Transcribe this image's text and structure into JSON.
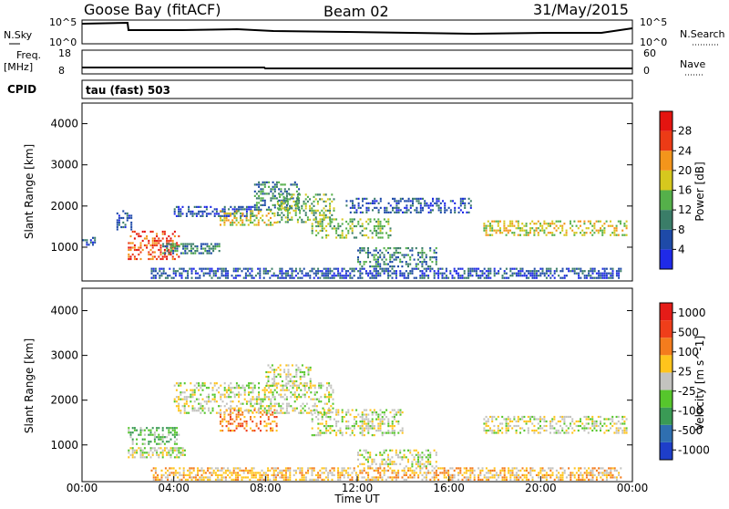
{
  "header": {
    "station": "Goose Bay (fitACF)",
    "beam": "Beam 02",
    "date": "31/May/2015"
  },
  "noise_panel": {
    "left_label": "N.Sky",
    "right_label": "N.Search",
    "left_ticks": [
      "10^5",
      "10^0"
    ],
    "right_ticks": [
      "10^5",
      "10^0"
    ]
  },
  "freq_panel": {
    "label_line1": "Freq.",
    "label_line2": "[MHz]",
    "left_ticks": [
      "18",
      "8"
    ],
    "right_label": "Nave",
    "right_ticks": [
      "60",
      "0"
    ]
  },
  "cpid": {
    "label": "CPID",
    "value": "tau (fast) 503"
  },
  "chart_data": [
    {
      "type": "heatmap",
      "quantity": "Power",
      "ylabel": "Slant Range [km]",
      "xlabel": "Time UT",
      "xlim": [
        0,
        24
      ],
      "ylim": [
        180,
        4500
      ],
      "y_ticks": [
        "1000",
        "2000",
        "3000",
        "4000"
      ],
      "x_ticks": [
        "00:00",
        "04:00",
        "08:00",
        "12:00",
        "16:00",
        "20:00",
        "00:00"
      ],
      "colorbar_label": "Power [dB]",
      "colorbar_ticks": [
        "4",
        "8",
        "12",
        "16",
        "20",
        "24",
        "28"
      ],
      "colorbar_colors": [
        "#1f2ae8",
        "#1e4aa8",
        "#3a7d68",
        "#55b04a",
        "#d6c81e",
        "#f3951b",
        "#ec3b16",
        "#e41410"
      ],
      "echo_regions": [
        {
          "t0": 0.0,
          "t1": 0.6,
          "r0": 1050,
          "r1": 1250,
          "level": 1
        },
        {
          "t0": 1.5,
          "t1": 2.2,
          "r0": 1400,
          "r1": 1900,
          "level": 1
        },
        {
          "t0": 2.0,
          "t1": 4.3,
          "r0": 700,
          "r1": 1400,
          "level": 6
        },
        {
          "t0": 3.5,
          "t1": 6.0,
          "r0": 850,
          "r1": 1100,
          "level": 2
        },
        {
          "t0": 4.0,
          "t1": 7.5,
          "r0": 1700,
          "r1": 2000,
          "level": 1
        },
        {
          "t0": 6.0,
          "t1": 8.5,
          "r0": 1500,
          "r1": 1900,
          "level": 4
        },
        {
          "t0": 7.5,
          "t1": 9.5,
          "r0": 1900,
          "r1": 2600,
          "level": 2
        },
        {
          "t0": 8.5,
          "t1": 11.0,
          "r0": 1600,
          "r1": 2300,
          "level": 3
        },
        {
          "t0": 10.0,
          "t1": 13.5,
          "r0": 1200,
          "r1": 1700,
          "level": 3
        },
        {
          "t0": 12.0,
          "t1": 15.5,
          "r0": 500,
          "r1": 1000,
          "level": 2
        },
        {
          "t0": 11.5,
          "t1": 17.0,
          "r0": 1800,
          "r1": 2200,
          "level": 1
        },
        {
          "t0": 17.5,
          "t1": 23.8,
          "r0": 1250,
          "r1": 1650,
          "level": 4
        },
        {
          "t0": 3.0,
          "t1": 23.5,
          "r0": 200,
          "r1": 500,
          "level": 1
        }
      ]
    },
    {
      "type": "heatmap",
      "quantity": "Velocity",
      "ylabel": "Slant Range [km]",
      "xlabel": "Time UT",
      "xlim": [
        0,
        24
      ],
      "ylim": [
        180,
        4500
      ],
      "y_ticks": [
        "1000",
        "2000",
        "3000",
        "4000"
      ],
      "x_ticks": [
        "00:00",
        "04:00",
        "08:00",
        "12:00",
        "16:00",
        "20:00",
        "00:00"
      ],
      "colorbar_label": "Velocity [m s^-1]",
      "colorbar_ticks": [
        "1000",
        "500",
        "100",
        "25",
        "-25",
        "-100",
        "-500",
        "-1000"
      ],
      "colorbar_colors": [
        "#1e3ec9",
        "#2f6fb0",
        "#3a9a55",
        "#56c62c",
        "#c3c3bf",
        "#ffc41c",
        "#f47c1d",
        "#ef3e1a",
        "#e51c18"
      ],
      "echo_regions": [
        {
          "t0": 2.0,
          "t1": 4.3,
          "r0": 1000,
          "r1": 1400,
          "level": 3
        },
        {
          "t0": 2.0,
          "t1": 4.5,
          "r0": 700,
          "r1": 950,
          "level": 4
        },
        {
          "t0": 6.0,
          "t1": 8.5,
          "r0": 1300,
          "r1": 1800,
          "level": 6
        },
        {
          "t0": 4.0,
          "t1": 11.0,
          "r0": 1700,
          "r1": 2400,
          "level": 4
        },
        {
          "t0": 8.0,
          "t1": 10.0,
          "r0": 2300,
          "r1": 2800,
          "level": 4
        },
        {
          "t0": 10.0,
          "t1": 14.0,
          "r0": 1200,
          "r1": 1800,
          "level": 4
        },
        {
          "t0": 12.0,
          "t1": 15.5,
          "r0": 500,
          "r1": 900,
          "level": 4
        },
        {
          "t0": 17.5,
          "t1": 23.8,
          "r0": 1250,
          "r1": 1650,
          "level": 4
        },
        {
          "t0": 3.0,
          "t1": 23.5,
          "r0": 200,
          "r1": 500,
          "level": 5
        }
      ]
    }
  ]
}
